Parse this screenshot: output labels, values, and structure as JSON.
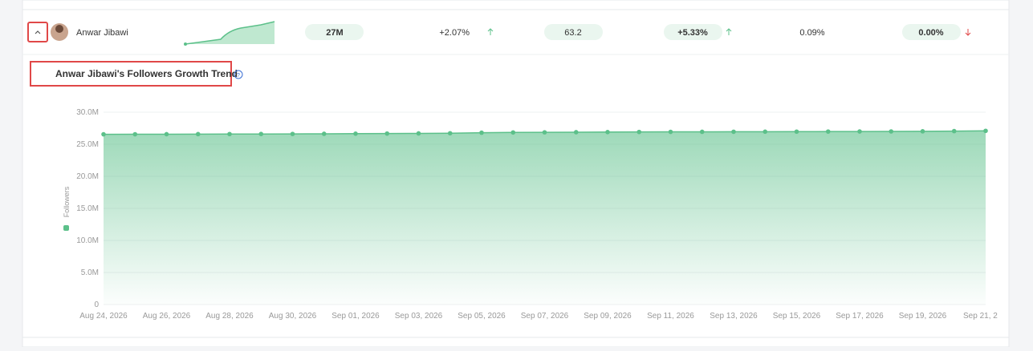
{
  "row": {
    "name": "Anwar Jibawi",
    "followers": "27M",
    "followers_growth": "+2.07%",
    "engagement": "63.2",
    "engagement_growth": "+5.33%",
    "rate": "0.09%",
    "rate_growth": "0.00%"
  },
  "chart_data": {
    "type": "line",
    "title": "Anwar Jibawi's Followers Growth Trend",
    "y_label": "Followers",
    "color": "#5cc08a",
    "categories": [
      "Aug 24, 2026",
      null,
      "Aug 26, 2026",
      null,
      "Aug 28, 2026",
      null,
      "Aug 30, 2026",
      null,
      "Sep 01, 2026",
      null,
      "Sep 03, 2026",
      null,
      "Sep 05, 2026",
      null,
      "Sep 07, 2026",
      null,
      "Sep 09, 2026",
      null,
      "Sep 11, 2026",
      null,
      "Sep 13, 2026",
      null,
      "Sep 15, 2026",
      null,
      "Sep 17, 2026",
      null,
      "Sep 19, 2026",
      null,
      "Sep 21, 2"
    ],
    "values": [
      26550000,
      26560000,
      26570000,
      26580000,
      26590000,
      26600000,
      26610000,
      26630000,
      26650000,
      26670000,
      26690000,
      26720000,
      26800000,
      26840000,
      26860000,
      26880000,
      26900000,
      26920000,
      26930000,
      26940000,
      26950000,
      26960000,
      26970000,
      26980000,
      26990000,
      27000000,
      27020000,
      27050000,
      27090000
    ],
    "ylim": [
      0,
      30000000
    ],
    "yticks": [
      0,
      {
        "value": 5000000,
        "label": "5.0M"
      },
      {
        "value": 10000000,
        "label": "10.0M"
      },
      {
        "value": 15000000,
        "label": "15.0M"
      },
      {
        "value": 20000000,
        "label": "20.0M"
      },
      {
        "value": 25000000,
        "label": "25.0M"
      },
      {
        "value": 30000000,
        "label": "30.0M"
      }
    ],
    "grid": true
  }
}
